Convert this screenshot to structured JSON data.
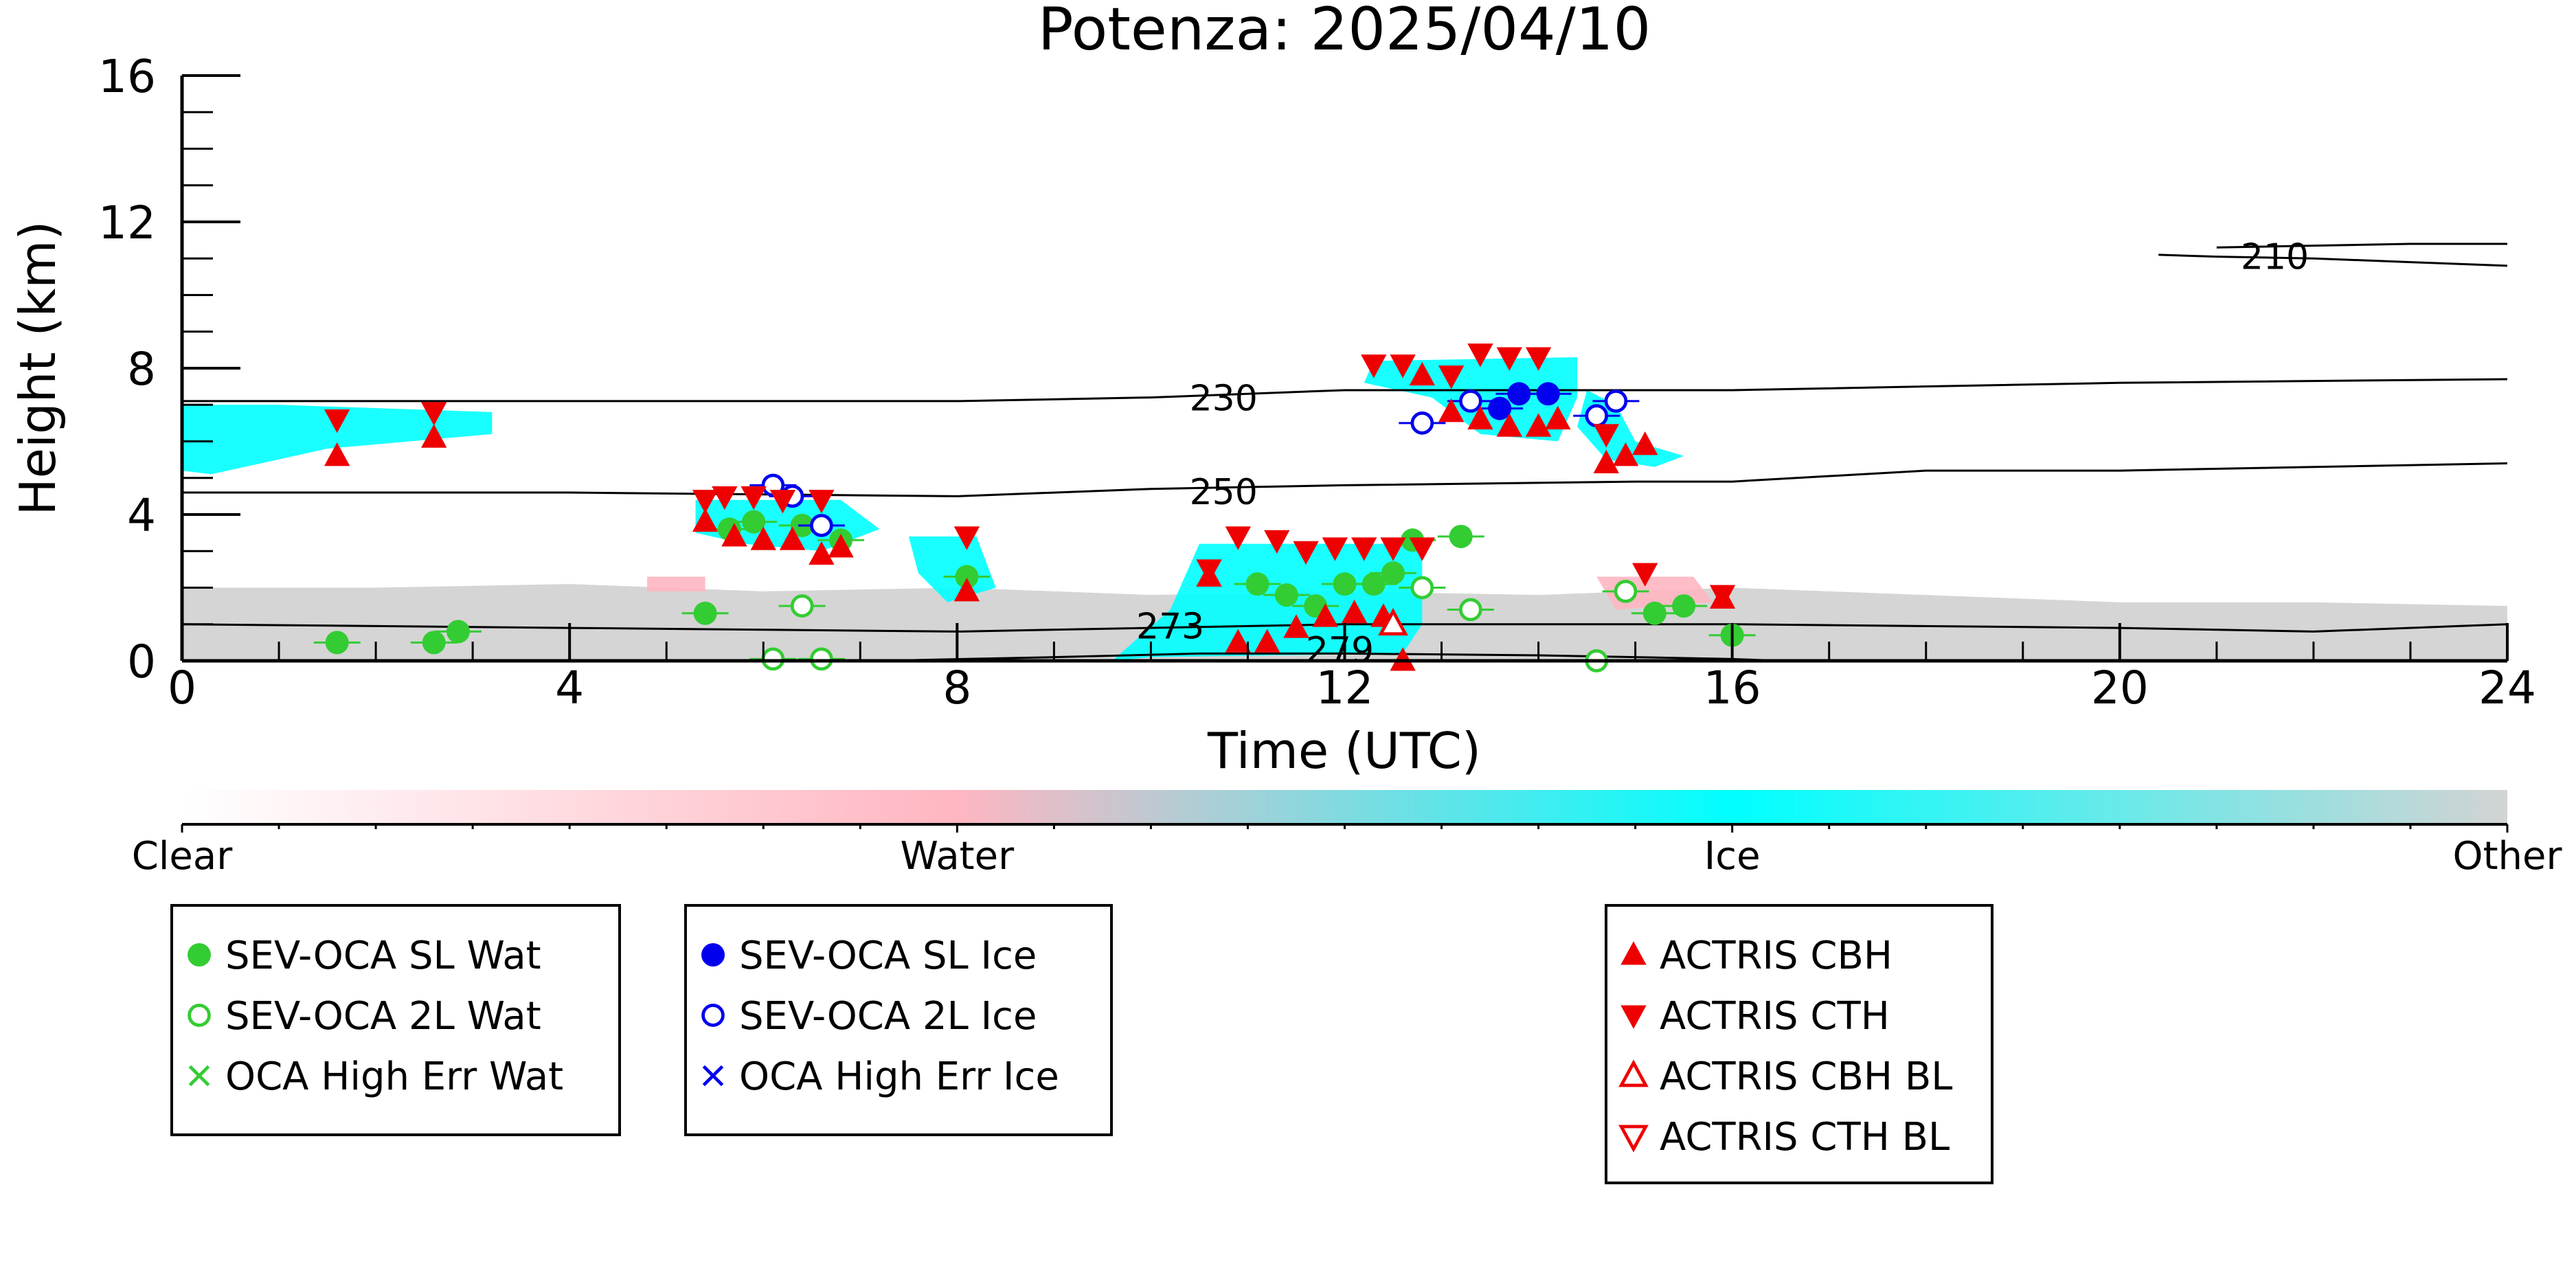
{
  "chart_data": {
    "type": "scatter",
    "title": "Potenza: 2025/04/10",
    "xlabel": "Time (UTC)",
    "ylabel": "Height (km)",
    "xlim": [
      0,
      24
    ],
    "ylim": [
      0,
      16
    ],
    "x_ticks": [
      0,
      4,
      8,
      12,
      16,
      20,
      24
    ],
    "y_ticks": [
      0,
      4,
      8,
      12,
      16
    ],
    "colorbar": {
      "labels": [
        "Clear",
        "Water",
        "Ice",
        "Other"
      ],
      "colors": [
        "#ffffff",
        "#ffb6c1",
        "#00ffff",
        "#d3d3d3"
      ]
    },
    "isotherms": [
      {
        "label": "210",
        "points": [
          [
            20.4,
            11.1
          ],
          [
            21,
            11.05
          ],
          [
            22,
            11.0
          ],
          [
            23,
            10.9
          ],
          [
            24,
            10.8
          ]
        ]
      },
      {
        "label": "210",
        "points": [
          [
            21.0,
            11.3
          ],
          [
            22,
            11.35
          ],
          [
            23,
            11.4
          ],
          [
            24,
            11.4
          ]
        ]
      },
      {
        "label": "230",
        "points": [
          [
            0,
            7.1
          ],
          [
            4,
            7.1
          ],
          [
            8,
            7.1
          ],
          [
            10,
            7.2
          ],
          [
            12,
            7.4
          ],
          [
            16,
            7.4
          ],
          [
            20,
            7.6
          ],
          [
            24,
            7.7
          ]
        ]
      },
      {
        "label": "250",
        "points": [
          [
            0,
            4.6
          ],
          [
            4,
            4.6
          ],
          [
            8,
            4.5
          ],
          [
            10,
            4.7
          ],
          [
            12,
            4.8
          ],
          [
            15,
            4.9
          ],
          [
            16,
            4.9
          ],
          [
            18,
            5.2
          ],
          [
            20,
            5.2
          ],
          [
            24,
            5.4
          ]
        ]
      },
      {
        "label": "273",
        "points": [
          [
            0,
            1.0
          ],
          [
            4,
            0.9
          ],
          [
            8,
            0.8
          ],
          [
            12,
            1.0
          ],
          [
            16,
            1.0
          ],
          [
            20,
            0.9
          ],
          [
            22,
            0.8
          ],
          [
            24,
            1.0
          ]
        ]
      },
      {
        "label": "279",
        "points": [
          [
            7.2,
            0.0
          ],
          [
            9,
            0.1
          ],
          [
            10.5,
            0.2
          ],
          [
            12,
            0.2
          ],
          [
            14,
            0.15
          ],
          [
            16,
            0.05
          ],
          [
            16.5,
            0.0
          ]
        ]
      }
    ],
    "cloud_regions": [
      {
        "phase": "Other",
        "points": [
          [
            0,
            0
          ],
          [
            0,
            2.0
          ],
          [
            2,
            2.0
          ],
          [
            4,
            2.1
          ],
          [
            6,
            1.9
          ],
          [
            8,
            2.0
          ],
          [
            10,
            1.8
          ],
          [
            12,
            1.9
          ],
          [
            14,
            1.8
          ],
          [
            16,
            2.0
          ],
          [
            18,
            1.8
          ],
          [
            20,
            1.6
          ],
          [
            22,
            1.6
          ],
          [
            24,
            1.5
          ],
          [
            24,
            0
          ]
        ]
      },
      {
        "phase": "Ice",
        "points": [
          [
            0,
            5.2
          ],
          [
            0,
            7.0
          ],
          [
            1.0,
            7.0
          ],
          [
            3.2,
            6.8
          ],
          [
            3.2,
            6.2
          ],
          [
            1.5,
            5.8
          ],
          [
            0.3,
            5.1
          ]
        ]
      },
      {
        "phase": "Ice",
        "points": [
          [
            5.3,
            3.5
          ],
          [
            5.3,
            4.4
          ],
          [
            6.8,
            4.4
          ],
          [
            7.2,
            3.6
          ],
          [
            6.6,
            3.0
          ],
          [
            5.8,
            3.2
          ]
        ]
      },
      {
        "phase": "Ice",
        "points": [
          [
            7.5,
            3.4
          ],
          [
            8.2,
            3.4
          ],
          [
            8.4,
            2.0
          ],
          [
            7.9,
            1.6
          ],
          [
            7.6,
            2.4
          ]
        ]
      },
      {
        "phase": "Ice",
        "points": [
          [
            9.6,
            0.0
          ],
          [
            10.2,
            1.4
          ],
          [
            10.5,
            3.2
          ],
          [
            12.8,
            3.2
          ],
          [
            12.8,
            1.0
          ],
          [
            12.6,
            0.2
          ],
          [
            10.0,
            0.1
          ]
        ]
      },
      {
        "phase": "Ice",
        "points": [
          [
            12.3,
            8.2
          ],
          [
            12.2,
            7.6
          ],
          [
            12.9,
            7.2
          ],
          [
            13.4,
            6.2
          ],
          [
            14.2,
            6.0
          ],
          [
            14.4,
            7.2
          ],
          [
            14.4,
            8.3
          ]
        ]
      },
      {
        "phase": "Ice",
        "points": [
          [
            14.5,
            7.4
          ],
          [
            14.8,
            7.0
          ],
          [
            15.0,
            6.0
          ],
          [
            15.5,
            5.6
          ],
          [
            15.2,
            5.3
          ],
          [
            14.7,
            5.5
          ],
          [
            14.4,
            6.4
          ]
        ]
      },
      {
        "phase": "Water",
        "points": [
          [
            14.6,
            2.3
          ],
          [
            15.6,
            2.3
          ],
          [
            15.8,
            1.6
          ],
          [
            14.8,
            1.4
          ]
        ]
      },
      {
        "phase": "Water",
        "points": [
          [
            4.8,
            2.3
          ],
          [
            5.4,
            2.3
          ],
          [
            5.4,
            1.9
          ],
          [
            4.8,
            1.9
          ]
        ]
      }
    ],
    "series": [
      {
        "name": "SEV-OCA SL Wat",
        "marker": "filled-circle",
        "color": "#33cc33",
        "points": [
          [
            1.6,
            0.5
          ],
          [
            2.6,
            0.5
          ],
          [
            2.85,
            0.8
          ],
          [
            5.4,
            1.3
          ],
          [
            5.65,
            3.6
          ],
          [
            5.9,
            3.8
          ],
          [
            6.4,
            3.7
          ],
          [
            6.8,
            3.3
          ],
          [
            8.1,
            2.3
          ],
          [
            11.1,
            2.1
          ],
          [
            11.4,
            1.8
          ],
          [
            11.7,
            1.5
          ],
          [
            12.0,
            2.1
          ],
          [
            12.3,
            2.1
          ],
          [
            12.5,
            2.4
          ],
          [
            12.7,
            3.3
          ],
          [
            13.2,
            3.4
          ],
          [
            15.2,
            1.3
          ],
          [
            15.5,
            1.5
          ],
          [
            16.0,
            0.7
          ]
        ]
      },
      {
        "name": "SEV-OCA 2L Wat",
        "marker": "open-circle",
        "color": "#33cc33",
        "points": [
          [
            6.1,
            0.05
          ],
          [
            6.4,
            1.5
          ],
          [
            6.6,
            0.05
          ],
          [
            12.8,
            2.0
          ],
          [
            13.3,
            1.4
          ],
          [
            14.6,
            0.0
          ],
          [
            14.9,
            1.9
          ]
        ]
      },
      {
        "name": "OCA High Err Wat",
        "marker": "x",
        "color": "#33cc33",
        "points": []
      },
      {
        "name": "SEV-OCA SL Ice",
        "marker": "filled-circle",
        "color": "#0000ee",
        "points": [
          [
            13.6,
            6.9
          ],
          [
            13.8,
            7.3
          ],
          [
            14.1,
            7.3
          ]
        ]
      },
      {
        "name": "SEV-OCA 2L Ice",
        "marker": "open-circle",
        "color": "#0000ee",
        "points": [
          [
            6.1,
            4.8
          ],
          [
            6.3,
            4.5
          ],
          [
            6.6,
            3.7
          ],
          [
            12.8,
            6.5
          ],
          [
            13.3,
            7.1
          ],
          [
            14.6,
            6.7
          ],
          [
            14.8,
            7.1
          ]
        ]
      },
      {
        "name": "OCA High Err Ice",
        "marker": "x",
        "color": "#0000ee",
        "points": []
      },
      {
        "name": "ACTRIS CBH",
        "marker": "triangle-up",
        "color": "#ee0000",
        "points": [
          [
            1.6,
            5.6
          ],
          [
            2.6,
            6.1
          ],
          [
            5.4,
            3.8
          ],
          [
            5.7,
            3.4
          ],
          [
            6.0,
            3.3
          ],
          [
            6.3,
            3.3
          ],
          [
            6.6,
            2.9
          ],
          [
            6.8,
            3.1
          ],
          [
            8.1,
            1.9
          ],
          [
            10.6,
            2.3
          ],
          [
            10.9,
            0.5
          ],
          [
            11.2,
            0.5
          ],
          [
            11.5,
            0.9
          ],
          [
            11.8,
            1.2
          ],
          [
            12.1,
            1.3
          ],
          [
            12.4,
            1.2
          ],
          [
            12.6,
            0.0
          ],
          [
            12.8,
            7.8
          ],
          [
            13.1,
            6.8
          ],
          [
            13.4,
            6.6
          ],
          [
            13.7,
            6.4
          ],
          [
            14.0,
            6.4
          ],
          [
            14.2,
            6.6
          ],
          [
            14.7,
            5.4
          ],
          [
            14.9,
            5.6
          ],
          [
            15.1,
            5.9
          ],
          [
            15.9,
            1.7
          ]
        ]
      },
      {
        "name": "ACTRIS CTH",
        "marker": "triangle-down",
        "color": "#ee0000",
        "points": [
          [
            1.6,
            6.6
          ],
          [
            2.6,
            6.8
          ],
          [
            5.4,
            4.4
          ],
          [
            5.6,
            4.5
          ],
          [
            5.9,
            4.5
          ],
          [
            6.2,
            4.4
          ],
          [
            6.6,
            4.4
          ],
          [
            8.1,
            3.4
          ],
          [
            10.6,
            2.5
          ],
          [
            10.9,
            3.4
          ],
          [
            11.3,
            3.3
          ],
          [
            11.6,
            3.0
          ],
          [
            11.9,
            3.1
          ],
          [
            12.2,
            3.1
          ],
          [
            12.5,
            3.1
          ],
          [
            12.8,
            3.1
          ],
          [
            12.3,
            8.1
          ],
          [
            12.6,
            8.1
          ],
          [
            13.1,
            7.8
          ],
          [
            13.4,
            8.4
          ],
          [
            13.7,
            8.3
          ],
          [
            14.0,
            8.3
          ],
          [
            14.7,
            6.2
          ],
          [
            15.1,
            2.4
          ],
          [
            15.9,
            1.8
          ]
        ]
      },
      {
        "name": "ACTRIS CBH BL",
        "marker": "open-triangle-up",
        "color": "#ee0000",
        "points": [
          [
            12.5,
            1.0
          ]
        ]
      },
      {
        "name": "ACTRIS CTH BL",
        "marker": "open-triangle-down",
        "color": "#ee0000",
        "points": []
      }
    ]
  },
  "legends": [
    {
      "items": [
        {
          "label": "SEV-OCA SL Wat",
          "marker": "filled-circle",
          "color": "#33cc33"
        },
        {
          "label": "SEV-OCA 2L Wat",
          "marker": "open-circle",
          "color": "#33cc33"
        },
        {
          "label": "OCA High Err Wat",
          "marker": "x",
          "color": "#33cc33"
        }
      ]
    },
    {
      "items": [
        {
          "label": "SEV-OCA SL Ice",
          "marker": "filled-circle",
          "color": "#0000ee"
        },
        {
          "label": "SEV-OCA 2L Ice",
          "marker": "open-circle",
          "color": "#0000ee"
        },
        {
          "label": "OCA High Err Ice",
          "marker": "x",
          "color": "#0000ee"
        }
      ]
    },
    {
      "items": [
        {
          "label": "ACTRIS CBH",
          "marker": "triangle-up",
          "color": "#ee0000"
        },
        {
          "label": "ACTRIS CTH",
          "marker": "triangle-down",
          "color": "#ee0000"
        },
        {
          "label": "ACTRIS CBH BL",
          "marker": "open-triangle-up",
          "color": "#ee0000"
        },
        {
          "label": "ACTRIS CTH BL",
          "marker": "open-triangle-down",
          "color": "#ee0000"
        }
      ]
    }
  ]
}
